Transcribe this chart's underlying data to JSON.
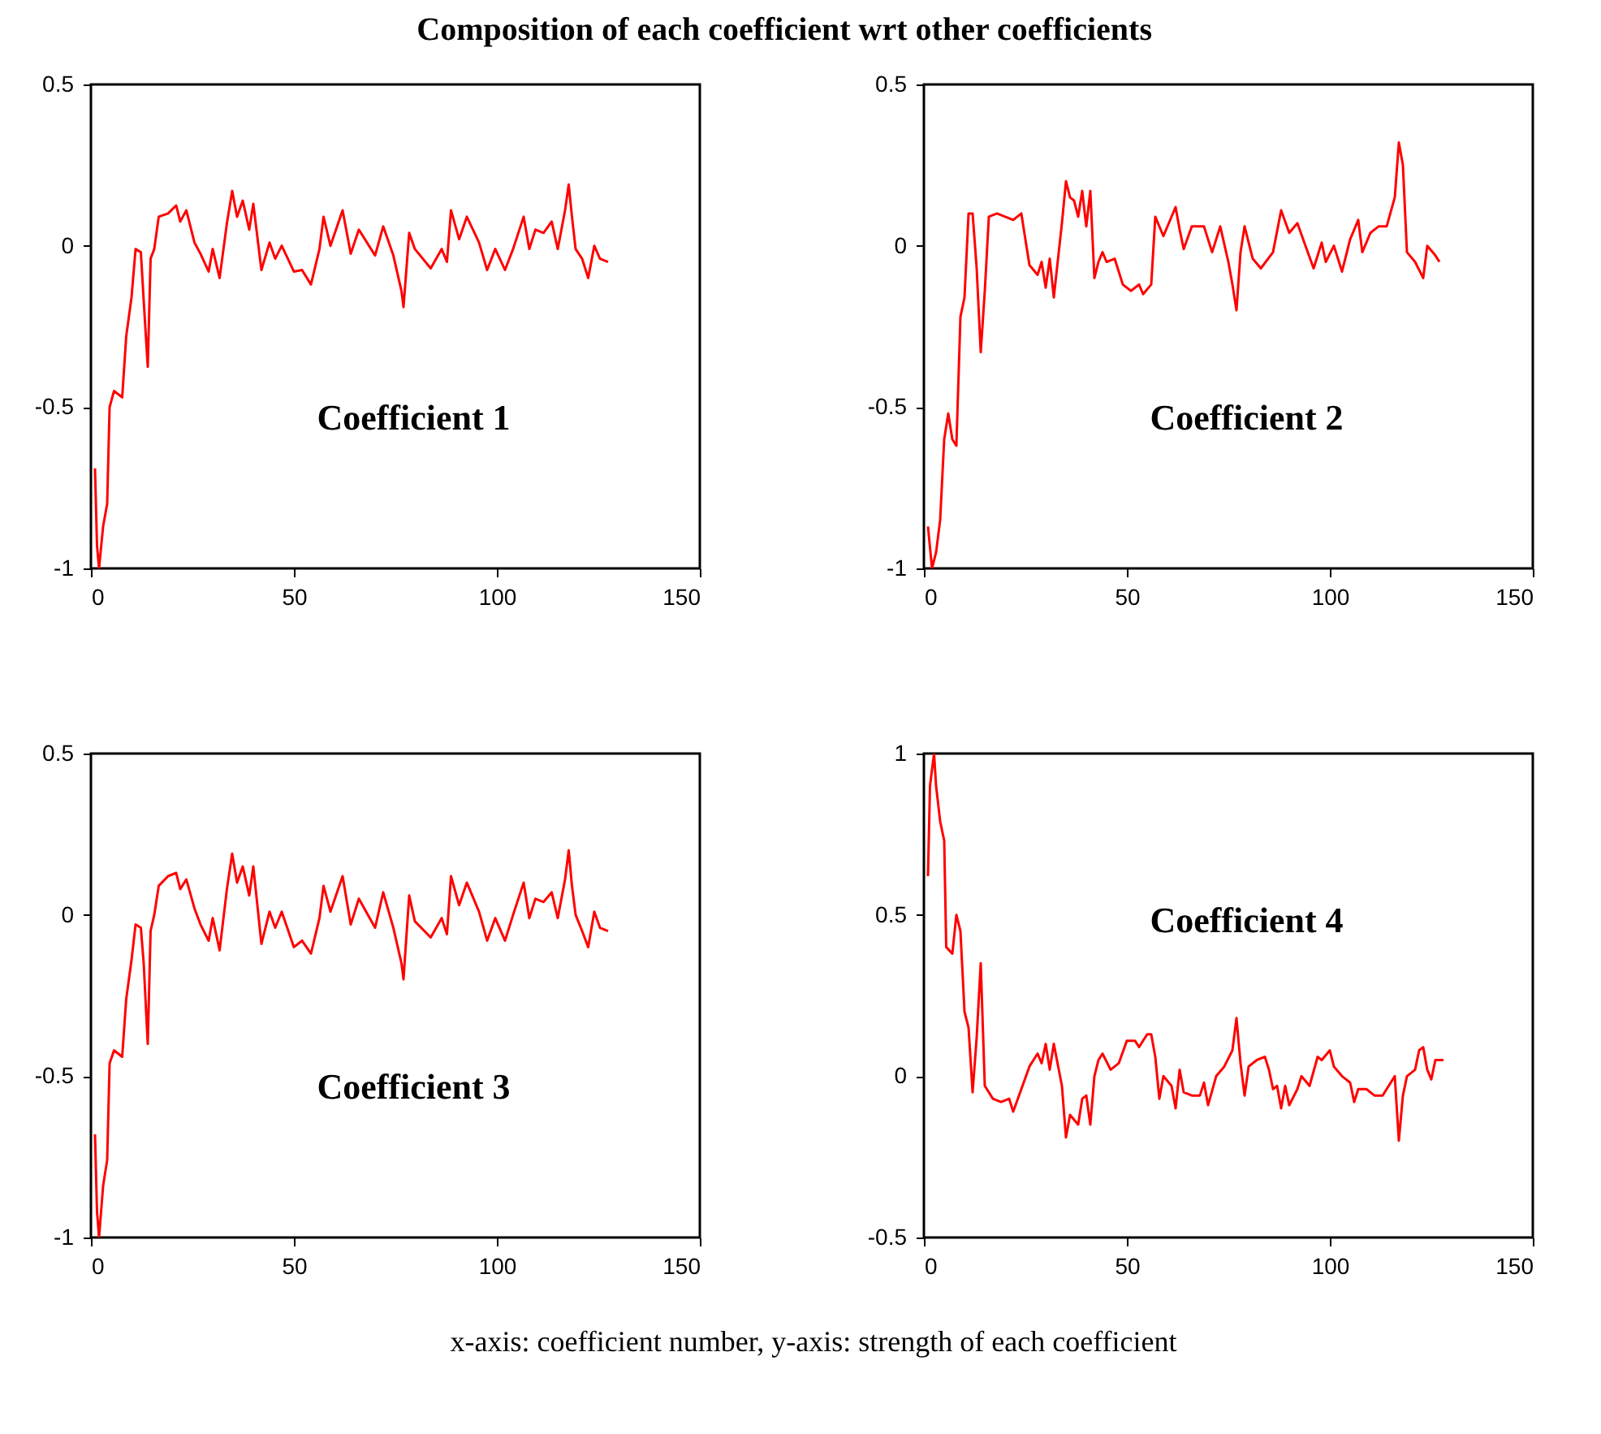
{
  "chart_data": [
    {
      "type": "line",
      "title": "Composition of each coefficient wrt other coefficients",
      "annotations": [
        "Coefficient 1",
        "x-axis: coefficient number, y-axis: strength of each coefficient"
      ],
      "xlim": [
        0,
        150
      ],
      "xticks": [
        0,
        50,
        100,
        150
      ],
      "ylim": [
        -1,
        0.5
      ],
      "yticks": [
        -1,
        -0.5,
        0,
        0.5
      ],
      "grid": false,
      "series": [
        {
          "color": "#ff0000",
          "x": [
            1,
            1.5,
            2,
            3,
            4,
            4.6,
            5.7,
            7.7,
            8.7,
            10,
            11,
            12.3,
            13,
            14,
            14.7,
            15.6,
            16.7,
            19,
            21,
            22,
            23.5,
            25.5,
            27,
            29,
            30,
            31.7,
            33.5,
            34.8,
            36,
            37.4,
            39,
            40,
            42,
            44,
            45.4,
            47,
            50,
            52,
            54.2,
            56.3,
            57.3,
            59,
            62,
            64,
            66,
            70,
            72,
            74.5,
            76.5,
            77,
            78.4,
            79.8,
            83.7,
            86.4,
            87.7,
            88.7,
            90.7,
            92.6,
            95.6,
            97.6,
            99.6,
            102,
            104,
            106.6,
            108,
            109.5,
            111.5,
            113.5,
            115,
            116.8,
            117.7,
            118.5,
            119.4,
            121,
            122.5,
            124,
            125.4,
            127.4
          ],
          "values": [
            -0.69,
            -0.93,
            -1.0,
            -0.87,
            -0.8,
            -0.5,
            -0.45,
            -0.47,
            -0.28,
            -0.16,
            -0.01,
            -0.02,
            -0.17,
            -0.375,
            -0.04,
            -0.01,
            0.09,
            0.1,
            0.125,
            0.075,
            0.11,
            0.01,
            -0.025,
            -0.08,
            -0.01,
            -0.1,
            0.07,
            0.17,
            0.09,
            0.14,
            0.05,
            0.13,
            -0.075,
            0.01,
            -0.04,
            0,
            -0.08,
            -0.075,
            -0.12,
            -0.01,
            0.09,
            0,
            0.11,
            -0.025,
            0.05,
            -0.03,
            0.06,
            -0.03,
            -0.14,
            -0.19,
            0.04,
            -0.01,
            -0.07,
            -0.01,
            -0.05,
            0.11,
            0.02,
            0.09,
            0.01,
            -0.075,
            -0.01,
            -0.075,
            -0.01,
            0.09,
            -0.01,
            0.05,
            0.04,
            0.075,
            -0.01,
            0.11,
            0.19,
            0.09,
            -0.01,
            -0.04,
            -0.1,
            0,
            -0.04,
            -0.05
          ]
        }
      ]
    },
    {
      "type": "line",
      "annotations": [
        "Coefficient 2"
      ],
      "xlim": [
        0,
        150
      ],
      "xticks": [
        0,
        50,
        100,
        150
      ],
      "ylim": [
        -1,
        0.5
      ],
      "yticks": [
        -1,
        -0.5,
        0,
        0.5
      ],
      "grid": false,
      "series": [
        {
          "color": "#ff0000",
          "x": [
            1,
            2,
            3,
            4,
            5,
            6,
            7,
            8,
            9,
            10,
            11,
            12,
            13,
            14,
            15,
            16,
            18,
            20,
            22,
            24,
            25,
            26,
            28,
            29,
            30,
            31,
            32,
            34,
            35,
            36,
            37,
            38,
            39,
            40,
            41,
            42,
            43,
            44,
            45,
            47,
            49,
            51,
            53,
            54,
            56,
            57,
            59,
            62,
            63,
            64,
            66,
            69,
            71,
            73,
            75,
            76,
            77,
            78,
            79,
            81,
            83,
            86,
            88,
            90,
            92,
            94,
            96,
            98,
            99,
            101,
            103,
            105,
            107,
            108,
            110,
            112,
            114,
            116,
            117,
            118,
            119,
            121,
            123,
            124,
            126,
            127
          ],
          "values": [
            -0.87,
            -1.0,
            -0.95,
            -0.85,
            -0.6,
            -0.52,
            -0.6,
            -0.62,
            -0.22,
            -0.16,
            0.1,
            0.1,
            -0.07,
            -0.33,
            -0.14,
            0.09,
            0.1,
            0.09,
            0.08,
            0.1,
            0.02,
            -0.06,
            -0.09,
            -0.05,
            -0.13,
            -0.04,
            -0.16,
            0.07,
            0.2,
            0.15,
            0.14,
            0.09,
            0.17,
            0.06,
            0.17,
            -0.1,
            -0.05,
            -0.02,
            -0.05,
            -0.04,
            -0.12,
            -0.14,
            -0.12,
            -0.15,
            -0.12,
            0.09,
            0.03,
            0.12,
            0.05,
            -0.01,
            0.06,
            0.06,
            -0.02,
            0.06,
            -0.05,
            -0.12,
            -0.2,
            -0.02,
            0.06,
            -0.04,
            -0.07,
            -0.02,
            0.11,
            0.04,
            0.07,
            0,
            -0.07,
            0.01,
            -0.05,
            0,
            -0.08,
            0.02,
            0.08,
            -0.02,
            0.04,
            0.06,
            0.06,
            0.15,
            0.32,
            0.25,
            -0.02,
            -0.05,
            -0.1,
            0,
            -0.03,
            -0.05
          ]
        }
      ]
    },
    {
      "type": "line",
      "annotations": [
        "Coefficient 3"
      ],
      "xlim": [
        0,
        150
      ],
      "xticks": [
        0,
        50,
        100,
        150
      ],
      "ylim": [
        -1,
        0.5
      ],
      "yticks": [
        -1,
        -0.5,
        0,
        0.5
      ],
      "grid": false,
      "series": [
        {
          "color": "#ff0000",
          "x": [
            1,
            1.5,
            2,
            3,
            4,
            4.6,
            5.7,
            7.7,
            8.7,
            10,
            11,
            12.3,
            13,
            14,
            14.7,
            15.6,
            16.7,
            19,
            21,
            22,
            23.5,
            25.5,
            27,
            29,
            30,
            31.7,
            33.5,
            34.8,
            36,
            37.4,
            39,
            40,
            42,
            44,
            45.4,
            47,
            50,
            52,
            54.2,
            56.3,
            57.3,
            59,
            62,
            64,
            66,
            70,
            72,
            74.5,
            76.5,
            77,
            78.4,
            79.8,
            83.7,
            86.4,
            87.7,
            88.7,
            90.7,
            92.6,
            95.6,
            97.6,
            99.6,
            102,
            104,
            106.6,
            108,
            109.5,
            111.5,
            113.5,
            115,
            116.8,
            117.7,
            118.5,
            119.4,
            121,
            122.5,
            124,
            125.4,
            127.4
          ],
          "values": [
            -0.68,
            -0.92,
            -1.0,
            -0.84,
            -0.76,
            -0.46,
            -0.42,
            -0.44,
            -0.26,
            -0.14,
            -0.03,
            -0.04,
            -0.15,
            -0.4,
            -0.05,
            0.0,
            0.09,
            0.12,
            0.13,
            0.08,
            0.11,
            0.02,
            -0.03,
            -0.08,
            -0.01,
            -0.11,
            0.08,
            0.19,
            0.1,
            0.15,
            0.06,
            0.15,
            -0.09,
            0.01,
            -0.04,
            0.01,
            -0.1,
            -0.08,
            -0.12,
            -0.01,
            0.09,
            0.01,
            0.12,
            -0.03,
            0.05,
            -0.04,
            0.07,
            -0.04,
            -0.15,
            -0.2,
            0.06,
            -0.02,
            -0.07,
            -0.01,
            -0.06,
            0.12,
            0.03,
            0.1,
            0.01,
            -0.08,
            -0.01,
            -0.08,
            0.0,
            0.1,
            -0.01,
            0.05,
            0.04,
            0.07,
            -0.01,
            0.11,
            0.2,
            0.09,
            0.0,
            -0.05,
            -0.1,
            0.01,
            -0.04,
            -0.05
          ]
        }
      ]
    },
    {
      "type": "line",
      "annotations": [
        "Coefficient 4"
      ],
      "xlim": [
        0,
        150
      ],
      "xticks": [
        0,
        50,
        100,
        150
      ],
      "ylim": [
        -0.5,
        1
      ],
      "yticks": [
        -0.5,
        0,
        0.5,
        1
      ],
      "grid": false,
      "series": [
        {
          "color": "#ff0000",
          "x": [
            1,
            1.5,
            2.5,
            3,
            4,
            5,
            5.5,
            7,
            8,
            9,
            10,
            11,
            12,
            13,
            14,
            15,
            17,
            19,
            21,
            22,
            24,
            26,
            28,
            29,
            30,
            31,
            32,
            34,
            35,
            36,
            38,
            39,
            40,
            41,
            42,
            43,
            44,
            46,
            48,
            50,
            52,
            53,
            55,
            56,
            57,
            58,
            59,
            61,
            62,
            63,
            64,
            66,
            68,
            69,
            70,
            72,
            74,
            76,
            77,
            78,
            79,
            80,
            82,
            84,
            85,
            86,
            87,
            88,
            89,
            90,
            92,
            93,
            95,
            97,
            98,
            100,
            101,
            103,
            105,
            106,
            107,
            109,
            111,
            113,
            114,
            116,
            117,
            118,
            119,
            121,
            122,
            123,
            124,
            125,
            126,
            128
          ],
          "values": [
            0.62,
            0.9,
            1.0,
            0.9,
            0.79,
            0.73,
            0.4,
            0.38,
            0.5,
            0.45,
            0.2,
            0.15,
            -0.05,
            0.12,
            0.35,
            -0.03,
            -0.07,
            -0.08,
            -0.07,
            -0.11,
            -0.04,
            0.03,
            0.07,
            0.04,
            0.1,
            0.02,
            0.1,
            -0.03,
            -0.19,
            -0.12,
            -0.15,
            -0.07,
            -0.06,
            -0.15,
            0,
            0.05,
            0.07,
            0.02,
            0.04,
            0.11,
            0.11,
            0.09,
            0.13,
            0.13,
            0.06,
            -0.07,
            0,
            -0.03,
            -0.1,
            0.02,
            -0.05,
            -0.06,
            -0.06,
            -0.02,
            -0.09,
            0,
            0.03,
            0.08,
            0.18,
            0.04,
            -0.06,
            0.03,
            0.05,
            0.06,
            0.02,
            -0.04,
            -0.03,
            -0.1,
            -0.03,
            -0.09,
            -0.04,
            0,
            -0.03,
            0.06,
            0.05,
            0.08,
            0.03,
            0,
            -0.02,
            -0.08,
            -0.04,
            -0.04,
            -0.06,
            -0.06,
            -0.04,
            0,
            -0.2,
            -0.06,
            0,
            0.02,
            0.08,
            0.09,
            0.02,
            -0.01,
            0.05,
            0.05
          ]
        }
      ]
    }
  ]
}
